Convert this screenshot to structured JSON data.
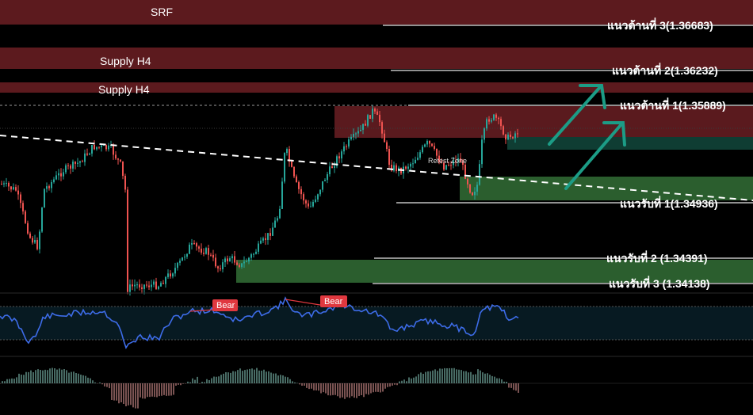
{
  "chart_data": {
    "type": "candlestick",
    "title": "",
    "zones": [
      {
        "label": "SRF",
        "kind": "supply"
      },
      {
        "label": "Supply H4",
        "kind": "supply"
      },
      {
        "label": "Supply H4",
        "kind": "supply"
      }
    ],
    "retest_label": "Retest Zone",
    "levels": [
      {
        "label": "แนวต้านที่ 3(1.36683)",
        "value": 1.36683,
        "kind": "resistance"
      },
      {
        "label": "แนวต้านที่ 2(1.36232)",
        "value": 1.36232,
        "kind": "resistance"
      },
      {
        "label": "แนวต้านที่ 1(1.35889)",
        "value": 1.35889,
        "kind": "resistance"
      },
      {
        "label": "แนวรับที่ 1(1.34936)",
        "value": 1.34936,
        "kind": "support"
      },
      {
        "label": "แนวรับที่ 2 (1.34391)",
        "value": 1.34391,
        "kind": "support"
      },
      {
        "label": "แนวรับที่ 3 (1.34138)",
        "value": 1.34138,
        "kind": "support"
      }
    ],
    "divergence_labels": [
      "Bear",
      "Bear"
    ],
    "colors": {
      "supply": "#5c1a1e",
      "support_zone": "#2b5e2e",
      "teal_zone": "#0f3d33",
      "arrow": "#1c9c86",
      "up_candle": "#26a69a",
      "down_candle": "#ef5350",
      "rsi_line": "#3d6ce8",
      "bear_label": "#e0383f"
    }
  }
}
